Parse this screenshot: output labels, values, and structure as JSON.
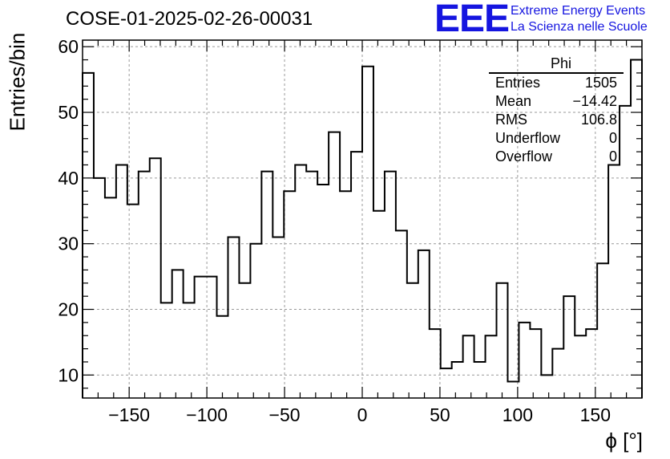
{
  "chart_data": {
    "type": "histogram",
    "title": "COSE-01-2025-02-26-00031",
    "xlabel": "ϕ [°]",
    "ylabel": "Entries/bin",
    "xlim": [
      -180,
      180
    ],
    "ylim": [
      6.5,
      61
    ],
    "grid": true,
    "x_ticks": [
      -150,
      -100,
      -50,
      0,
      50,
      100,
      150
    ],
    "x_tick_labels": [
      "−150",
      "−100",
      "−50",
      "0",
      "50",
      "100",
      "150"
    ],
    "y_ticks": [
      10,
      20,
      30,
      40,
      50,
      60
    ],
    "y_tick_labels": [
      "10",
      "20",
      "30",
      "40",
      "50",
      "60"
    ],
    "bin_width": 7.2,
    "values": [
      56,
      40,
      37,
      42,
      36,
      41,
      43,
      21,
      26,
      21,
      25,
      25,
      19,
      31,
      24,
      30,
      41,
      31,
      38,
      42,
      41,
      39,
      47,
      38,
      44,
      57,
      35,
      41,
      32,
      24,
      29,
      17,
      11,
      12,
      16,
      12,
      16,
      24,
      9,
      18,
      17,
      10,
      14,
      22,
      16,
      17,
      27,
      42,
      51,
      58
    ]
  },
  "stats": {
    "name": "Phi",
    "rows": [
      {
        "label": "Entries",
        "value": "1505"
      },
      {
        "label": "Mean",
        "value": "−14.42"
      },
      {
        "label": "RMS",
        "value": "106.8"
      },
      {
        "label": "Underflow",
        "value": "0"
      },
      {
        "label": "Overflow",
        "value": "0"
      }
    ]
  },
  "logo": {
    "mark": "EEE",
    "line1": "Extreme Energy Events",
    "line2": "La Scienza nelle Scuole",
    "color": "#1515e0"
  }
}
